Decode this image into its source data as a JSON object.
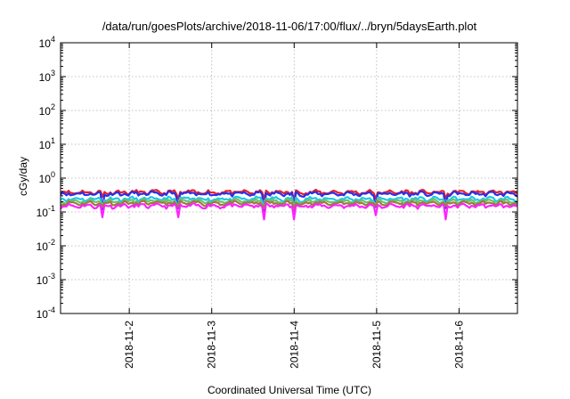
{
  "chart_data": {
    "type": "line",
    "title": "/data/run/goesPlots/archive/2018-11-06/17:00/flux/../bryn/5daysEarth.plot",
    "xlabel": "Coordinated Universal Time (UTC)",
    "ylabel": "cGy/day",
    "yscale": "log",
    "ylim": [
      0.0001,
      10000
    ],
    "xlim": [
      "2018-11-01T04:00",
      "2018-11-06T17:00"
    ],
    "grid": true,
    "x_ticks": [
      "2018-11-2",
      "2018-11-3",
      "2018-11-4",
      "2018-11-5",
      "2018-11-6"
    ],
    "x_tick_dates": [
      "2018-11-02T00:00",
      "2018-11-03T00:00",
      "2018-11-04T00:00",
      "2018-11-05T00:00",
      "2018-11-06T00:00"
    ],
    "y_ticks": [
      {
        "value": 0.0001,
        "base": "10",
        "exp": "-4"
      },
      {
        "value": 0.001,
        "base": "10",
        "exp": "-3"
      },
      {
        "value": 0.01,
        "base": "10",
        "exp": "-2"
      },
      {
        "value": 0.1,
        "base": "10",
        "exp": "-1"
      },
      {
        "value": 1,
        "base": "10",
        "exp": "0"
      },
      {
        "value": 10,
        "base": "10",
        "exp": "1"
      },
      {
        "value": 100,
        "base": "10",
        "exp": "2"
      },
      {
        "value": 1000,
        "base": "10",
        "exp": "3"
      },
      {
        "value": 10000,
        "base": "10",
        "exp": "4"
      }
    ],
    "series": [
      {
        "color": "#e8202a",
        "level": 0.38,
        "dips": [
          [
            "2018-11-01T16:00",
            0.28
          ],
          [
            "2018-11-02T14:00",
            0.25
          ],
          [
            "2018-11-03T15:00",
            0.24
          ],
          [
            "2018-11-04T00:00",
            0.22
          ],
          [
            "2018-11-05T00:00",
            0.25
          ],
          [
            "2018-11-05T20:00",
            0.25
          ]
        ]
      },
      {
        "color": "#2a2ee8",
        "level": 0.34,
        "dips": [
          [
            "2018-11-01T16:00",
            0.12
          ],
          [
            "2018-11-02T14:00",
            0.13
          ],
          [
            "2018-11-03T15:00",
            0.1
          ],
          [
            "2018-11-04T00:00",
            0.11
          ],
          [
            "2018-11-05T00:00",
            0.14
          ],
          [
            "2018-11-05T20:00",
            0.13
          ]
        ]
      },
      {
        "color": "#1ec8e8",
        "level": 0.24,
        "dips": [
          [
            "2018-11-01T16:00",
            0.14
          ],
          [
            "2018-11-02T14:00",
            0.14
          ],
          [
            "2018-11-03T15:00",
            0.13
          ],
          [
            "2018-11-04T00:00",
            0.12
          ],
          [
            "2018-11-05T00:00",
            0.15
          ],
          [
            "2018-11-05T20:00",
            0.15
          ]
        ]
      },
      {
        "color": "#6fc06a",
        "level": 0.205,
        "dips": [
          [
            "2018-11-01T16:00",
            0.15
          ],
          [
            "2018-11-02T14:00",
            0.15
          ],
          [
            "2018-11-03T15:00",
            0.14
          ],
          [
            "2018-11-04T00:00",
            0.13
          ],
          [
            "2018-11-05T00:00",
            0.16
          ],
          [
            "2018-11-05T20:00",
            0.16
          ]
        ]
      },
      {
        "color": "#9c7a3c",
        "level": 0.18,
        "dips": [
          [
            "2018-11-01T16:00",
            0.14
          ],
          [
            "2018-11-02T14:00",
            0.14
          ],
          [
            "2018-11-03T15:00",
            0.13
          ],
          [
            "2018-11-04T00:00",
            0.12
          ],
          [
            "2018-11-05T00:00",
            0.15
          ],
          [
            "2018-11-05T20:00",
            0.15
          ]
        ]
      },
      {
        "color": "#ff22ff",
        "level": 0.15,
        "dips": [
          [
            "2018-11-01T16:00",
            0.07
          ],
          [
            "2018-11-02T14:00",
            0.07
          ],
          [
            "2018-11-03T15:00",
            0.06
          ],
          [
            "2018-11-04T00:00",
            0.06
          ],
          [
            "2018-11-05T00:00",
            0.08
          ],
          [
            "2018-11-05T20:00",
            0.06
          ]
        ]
      }
    ]
  }
}
